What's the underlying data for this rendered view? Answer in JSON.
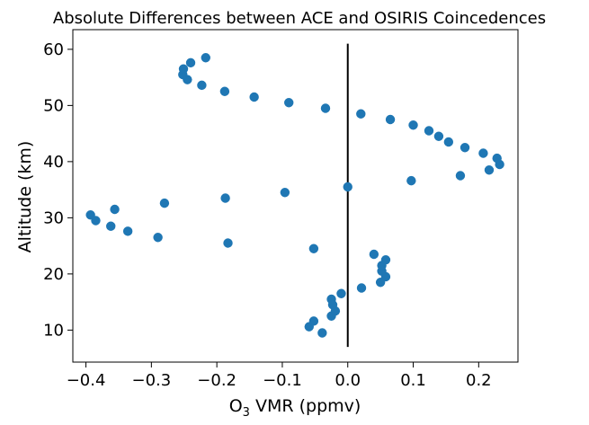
{
  "chart_data": {
    "type": "scatter",
    "title": "Absolute Differences between ACE and OSIRIS Coincedences",
    "xlabel_main": "O",
    "xlabel_sub": "3",
    "xlabel_rest": " VMR (ppmv)",
    "ylabel": "Altitude (km)",
    "xlim": [
      -0.42,
      0.26
    ],
    "ylim": [
      4.3,
      63.5
    ],
    "xticks": [
      -0.4,
      -0.3,
      -0.2,
      -0.1,
      0.0,
      0.1,
      0.2
    ],
    "xtick_labels": [
      "−0.4",
      "−0.3",
      "−0.2",
      "−0.1",
      "0.0",
      "0.1",
      "0.2"
    ],
    "yticks": [
      10,
      20,
      30,
      40,
      50,
      60
    ],
    "ytick_labels": [
      "10",
      "20",
      "30",
      "40",
      "50",
      "60"
    ],
    "marker_color": "#1f77b4",
    "reference_line": {
      "x": 0.0,
      "y_range": [
        7,
        61
      ],
      "color": "#000000"
    },
    "points": [
      {
        "x": -0.059,
        "y": 10.6
      },
      {
        "x": -0.052,
        "y": 11.6
      },
      {
        "x": -0.039,
        "y": 9.5
      },
      {
        "x": -0.025,
        "y": 12.5
      },
      {
        "x": -0.019,
        "y": 13.4
      },
      {
        "x": -0.023,
        "y": 14.5
      },
      {
        "x": -0.025,
        "y": 15.5
      },
      {
        "x": -0.01,
        "y": 16.5
      },
      {
        "x": 0.021,
        "y": 17.5
      },
      {
        "x": 0.05,
        "y": 18.5
      },
      {
        "x": 0.058,
        "y": 19.5
      },
      {
        "x": 0.052,
        "y": 20.5
      },
      {
        "x": 0.052,
        "y": 21.5
      },
      {
        "x": 0.058,
        "y": 22.5
      },
      {
        "x": 0.04,
        "y": 23.5
      },
      {
        "x": -0.052,
        "y": 24.5
      },
      {
        "x": -0.183,
        "y": 25.5
      },
      {
        "x": -0.29,
        "y": 26.5
      },
      {
        "x": -0.336,
        "y": 27.6
      },
      {
        "x": -0.362,
        "y": 28.5
      },
      {
        "x": -0.385,
        "y": 29.5
      },
      {
        "x": -0.393,
        "y": 30.5
      },
      {
        "x": -0.356,
        "y": 31.5
      },
      {
        "x": -0.28,
        "y": 32.6
      },
      {
        "x": -0.187,
        "y": 33.5
      },
      {
        "x": -0.096,
        "y": 34.5
      },
      {
        "x": 0.0,
        "y": 35.5
      },
      {
        "x": 0.097,
        "y": 36.6
      },
      {
        "x": 0.172,
        "y": 37.5
      },
      {
        "x": 0.216,
        "y": 38.5
      },
      {
        "x": 0.232,
        "y": 39.5
      },
      {
        "x": 0.228,
        "y": 40.6
      },
      {
        "x": 0.207,
        "y": 41.5
      },
      {
        "x": 0.179,
        "y": 42.5
      },
      {
        "x": 0.154,
        "y": 43.5
      },
      {
        "x": 0.139,
        "y": 44.5
      },
      {
        "x": 0.124,
        "y": 45.5
      },
      {
        "x": 0.1,
        "y": 46.5
      },
      {
        "x": 0.065,
        "y": 47.5
      },
      {
        "x": 0.02,
        "y": 48.5
      },
      {
        "x": -0.034,
        "y": 49.5
      },
      {
        "x": -0.09,
        "y": 50.5
      },
      {
        "x": -0.143,
        "y": 51.5
      },
      {
        "x": -0.188,
        "y": 52.5
      },
      {
        "x": -0.223,
        "y": 53.6
      },
      {
        "x": -0.245,
        "y": 54.6
      },
      {
        "x": -0.252,
        "y": 55.5
      },
      {
        "x": -0.251,
        "y": 56.5
      },
      {
        "x": -0.24,
        "y": 57.6
      },
      {
        "x": -0.217,
        "y": 58.5
      }
    ]
  }
}
